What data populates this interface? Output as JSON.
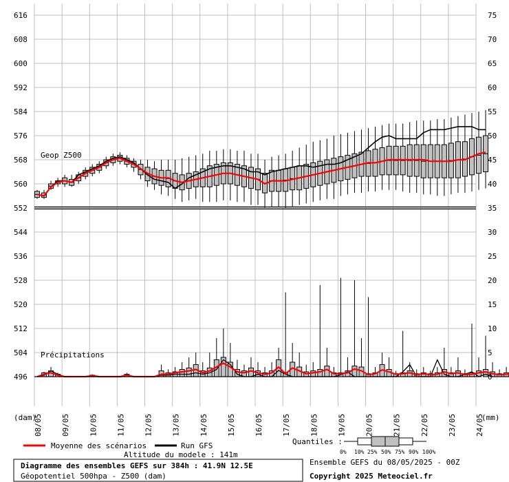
{
  "chart_data": {
    "type": "box",
    "title": "Diagramme des ensembles GEFS sur 384h : 41.9N 12.5E",
    "subtitle": "Géopotentiel 500hpa - Z500 (dam)",
    "altitude_text": "Altitude du modele : 141m",
    "run_text": "Ensemble GEFS du 08/05/2025 - 00Z",
    "copyright": "Copyright 2025 Meteociel.fr",
    "left_axis": {
      "unit": "(dam)",
      "ylim": [
        488,
        620
      ],
      "ticks": [
        496,
        504,
        512,
        520,
        528,
        536,
        544,
        552,
        560,
        568,
        576,
        584,
        592,
        600,
        608,
        616
      ]
    },
    "right_axis": {
      "unit": "(mm)",
      "ticks": [
        0,
        5,
        10,
        15,
        20,
        25,
        30,
        35,
        40,
        45,
        50,
        55,
        60,
        65,
        70,
        75
      ]
    },
    "x_ticks": [
      "08/05",
      "09/05",
      "10/05",
      "11/05",
      "12/05",
      "13/05",
      "14/05",
      "15/05",
      "16/05",
      "17/05",
      "18/05",
      "19/05",
      "20/05",
      "21/05",
      "22/05",
      "23/05",
      "24/05"
    ],
    "panel_labels": {
      "geop": "Geop Z500",
      "precip": "Précipitations"
    },
    "legend": {
      "mean": "Moyenne des scénarios",
      "run": "Run GFS",
      "quantiles_label": "Quantiles :",
      "quantile_values": [
        "0%",
        "10%",
        "25%",
        "50%",
        "75%",
        "90%",
        "100%"
      ]
    },
    "colors": {
      "box_fill": "#c0c0c0",
      "mean": "#ff0000",
      "run": "#000000",
      "grid": "#c0c0c0"
    },
    "reference_line_dam": 552,
    "geop": {
      "step_hours": 6,
      "mean": [
        556.5,
        556,
        559,
        560.5,
        561,
        560.5,
        562,
        563.5,
        564.5,
        565.5,
        567,
        568,
        568.5,
        567.5,
        566.5,
        565,
        563.5,
        562.5,
        562,
        562,
        561,
        560.5,
        561,
        561.5,
        562,
        562.5,
        563,
        563.5,
        563.5,
        563,
        562.5,
        562,
        561.5,
        560,
        561,
        561,
        561,
        561.5,
        562,
        562.5,
        563,
        563.5,
        564,
        564.5,
        565,
        565.5,
        566,
        566.5,
        567,
        567,
        567.5,
        568,
        568,
        568,
        568,
        568,
        568,
        567.5,
        567.5,
        567.5,
        567.5,
        568,
        568,
        569,
        570,
        570.5
      ],
      "run": [
        556.5,
        556,
        559,
        561,
        561,
        560.5,
        563,
        564,
        565,
        566,
        567.5,
        568.5,
        569,
        568,
        567,
        565,
        563,
        561.5,
        561,
        560.5,
        558.5,
        560,
        562,
        563,
        564,
        565,
        565.5,
        566,
        566,
        565.5,
        565,
        564,
        564,
        563,
        564,
        564.5,
        565,
        565.5,
        566,
        566,
        565.5,
        566,
        566.5,
        566.5,
        567,
        568,
        569,
        570,
        572,
        574,
        575.5,
        576,
        575,
        575,
        575,
        575,
        577,
        578,
        578,
        578,
        578.5,
        579,
        579,
        579,
        578,
        578
      ],
      "p25": [
        555.5,
        555.5,
        558.5,
        560,
        560,
        559.5,
        561,
        562.5,
        563.5,
        564.5,
        566,
        567,
        567.5,
        566.5,
        565.5,
        563,
        561,
        560,
        559.5,
        559,
        558.5,
        558,
        558.5,
        559,
        559,
        559,
        559.5,
        560,
        560,
        559.5,
        559,
        558.5,
        558,
        557,
        557.5,
        557.5,
        557.5,
        558,
        558,
        558.5,
        559,
        559.5,
        560,
        560.5,
        561,
        561.5,
        562,
        562.5,
        562.5,
        562.5,
        563,
        563,
        563,
        563,
        562.5,
        562.5,
        562,
        562,
        562,
        562,
        562,
        562,
        562.5,
        563,
        563.5,
        564
      ],
      "p75": [
        557.5,
        557,
        560,
        561,
        562,
        561.5,
        563,
        564.5,
        565.5,
        566.5,
        568,
        569,
        569.5,
        568.5,
        567.5,
        566.5,
        565.5,
        565,
        564.5,
        564.5,
        563.5,
        563,
        563.5,
        564,
        565,
        566,
        566.5,
        567,
        567,
        566.5,
        566,
        565.5,
        565,
        563.5,
        564.5,
        564.5,
        565,
        565.5,
        566,
        566.5,
        567,
        567.5,
        568,
        568.5,
        569,
        569.5,
        570,
        570.5,
        571,
        571.5,
        572,
        572.5,
        572.5,
        572.5,
        573,
        573,
        573,
        573,
        573,
        573,
        573.5,
        574,
        574,
        575,
        575.5,
        576
      ],
      "min": [
        555,
        555,
        558,
        559,
        559,
        559,
        560,
        561.5,
        562.5,
        563.5,
        565,
        566,
        566.5,
        565.5,
        564,
        561.5,
        559,
        558,
        556.5,
        556,
        555,
        554,
        554.5,
        555,
        554,
        554,
        554,
        554.5,
        554.5,
        554,
        554,
        553,
        553,
        552,
        552.5,
        552.5,
        552,
        552.5,
        553,
        553.5,
        554,
        554.5,
        555,
        555,
        556,
        556.5,
        557,
        557,
        557.5,
        557.5,
        558,
        558,
        558,
        557.5,
        557,
        557,
        556.5,
        556.5,
        556,
        556,
        556.5,
        557,
        557,
        557.5,
        558,
        558.5
      ],
      "max": [
        558,
        558,
        561,
        562,
        563,
        563,
        564,
        565.5,
        566.5,
        567.5,
        569,
        570,
        570.5,
        569.5,
        568.5,
        568,
        568,
        567.5,
        568,
        568,
        568,
        568.5,
        569,
        569.5,
        570,
        571,
        571,
        571.5,
        571.5,
        571,
        571,
        570,
        570,
        568,
        569,
        569.5,
        570,
        571,
        572,
        573,
        574,
        574.5,
        575,
        576,
        576.5,
        577,
        577.5,
        578,
        578.5,
        579,
        579.5,
        580,
        580,
        580,
        580.5,
        581,
        581,
        581,
        581.5,
        581.5,
        582,
        582.5,
        583,
        583.5,
        584,
        584.5
      ]
    },
    "precip": {
      "step_hours": 6,
      "mean": [
        0,
        0.5,
        0.8,
        0.3,
        0,
        0,
        0,
        0,
        0.2,
        0,
        0,
        0,
        0,
        0.3,
        0,
        0,
        0,
        0,
        0.5,
        0.5,
        0.8,
        1,
        1.2,
        1.5,
        0.8,
        1.2,
        2,
        2.8,
        2,
        1,
        0.8,
        1.2,
        0.8,
        0.5,
        0.8,
        2,
        0.6,
        1.8,
        1.2,
        0.6,
        0.8,
        1,
        1.5,
        0.6,
        0.6,
        0.8,
        1.6,
        1.2,
        0.4,
        0.6,
        1.4,
        1,
        0.5,
        0.6,
        0.8,
        0.4,
        0.6,
        0.4,
        0.5,
        1,
        0.6,
        0.8,
        0.4,
        0.5,
        0.8,
        1,
        0.6,
        0.4,
        0.5,
        0.6,
        0.8,
        0.6,
        0.3,
        0.5,
        1.2,
        1.3,
        0.6,
        0.2,
        0,
        0
      ],
      "run": [
        0,
        0.3,
        1.2,
        0.5,
        0,
        0,
        0,
        0,
        0,
        0,
        0,
        0,
        0,
        0.3,
        0,
        0,
        0,
        0,
        0.3,
        0.3,
        0.5,
        0.5,
        0.5,
        0.8,
        0.5,
        0.8,
        1.5,
        3.5,
        2.5,
        0.5,
        0,
        0,
        0.5,
        0,
        0,
        1.3,
        0.5,
        0,
        0,
        0,
        0,
        0,
        0,
        0,
        0.4,
        1,
        0,
        0,
        0,
        0,
        0,
        0,
        0,
        1,
        2.5,
        0,
        0,
        0,
        3.5,
        0.5,
        0,
        0,
        0.5,
        1,
        0,
        0.5,
        0,
        0,
        0,
        0,
        0,
        0,
        0,
        0,
        0,
        0,
        0,
        0.5,
        0,
        0,
        0
      ],
      "p75": [
        0,
        0.8,
        1.2,
        0.5,
        0,
        0,
        0,
        0,
        0.3,
        0,
        0,
        0,
        0,
        0.5,
        0,
        0,
        0,
        0,
        1.2,
        0.8,
        1,
        1.5,
        1.8,
        2.5,
        1.2,
        1.8,
        3.5,
        4,
        3,
        1.5,
        1.2,
        1.8,
        1.2,
        0.8,
        1.2,
        3.5,
        0.8,
        3,
        2,
        1,
        1.2,
        1.5,
        2.2,
        0.8,
        0.8,
        1.2,
        2.2,
        2,
        0.6,
        0.8,
        2.5,
        1.5,
        0.6,
        0.8,
        1.2,
        0.6,
        0.8,
        0.6,
        0.8,
        1.5,
        0.8,
        1.2,
        0.6,
        0.8,
        1.2,
        1.5,
        1,
        0.6,
        0.8,
        1,
        1.2,
        1,
        0.5,
        0.8,
        1.8,
        2,
        1,
        0.3,
        0,
        0
      ],
      "max": [
        0,
        1,
        2,
        0.8,
        0,
        0,
        0,
        0,
        0.5,
        0,
        0,
        0,
        0,
        0.8,
        0,
        0,
        0,
        0,
        2.5,
        1.5,
        2,
        3,
        4,
        5,
        3,
        5,
        8,
        10,
        7,
        3.5,
        2.5,
        4,
        3,
        2,
        3,
        6,
        1.5,
        7,
        5,
        2.5,
        3,
        4,
        6,
        2,
        2,
        4,
        12,
        8,
        1.5,
        2,
        5,
        4,
        1.2,
        1.5,
        3,
        1.5,
        2,
        1.2,
        2,
        6,
        2,
        4,
        1.5,
        2,
        4,
        5,
        3,
        1.5,
        2,
        2.5,
        3,
        2.5,
        1,
        2,
        4,
        5,
        3,
        0.8,
        0,
        0
      ],
      "max_extra": {
        "36": 17.5,
        "41": 19,
        "44": 20.5,
        "46": 20,
        "48": 16.5,
        "53": 9.5,
        "63": 11,
        "65": 8.5,
        "74": 8
      }
    }
  }
}
